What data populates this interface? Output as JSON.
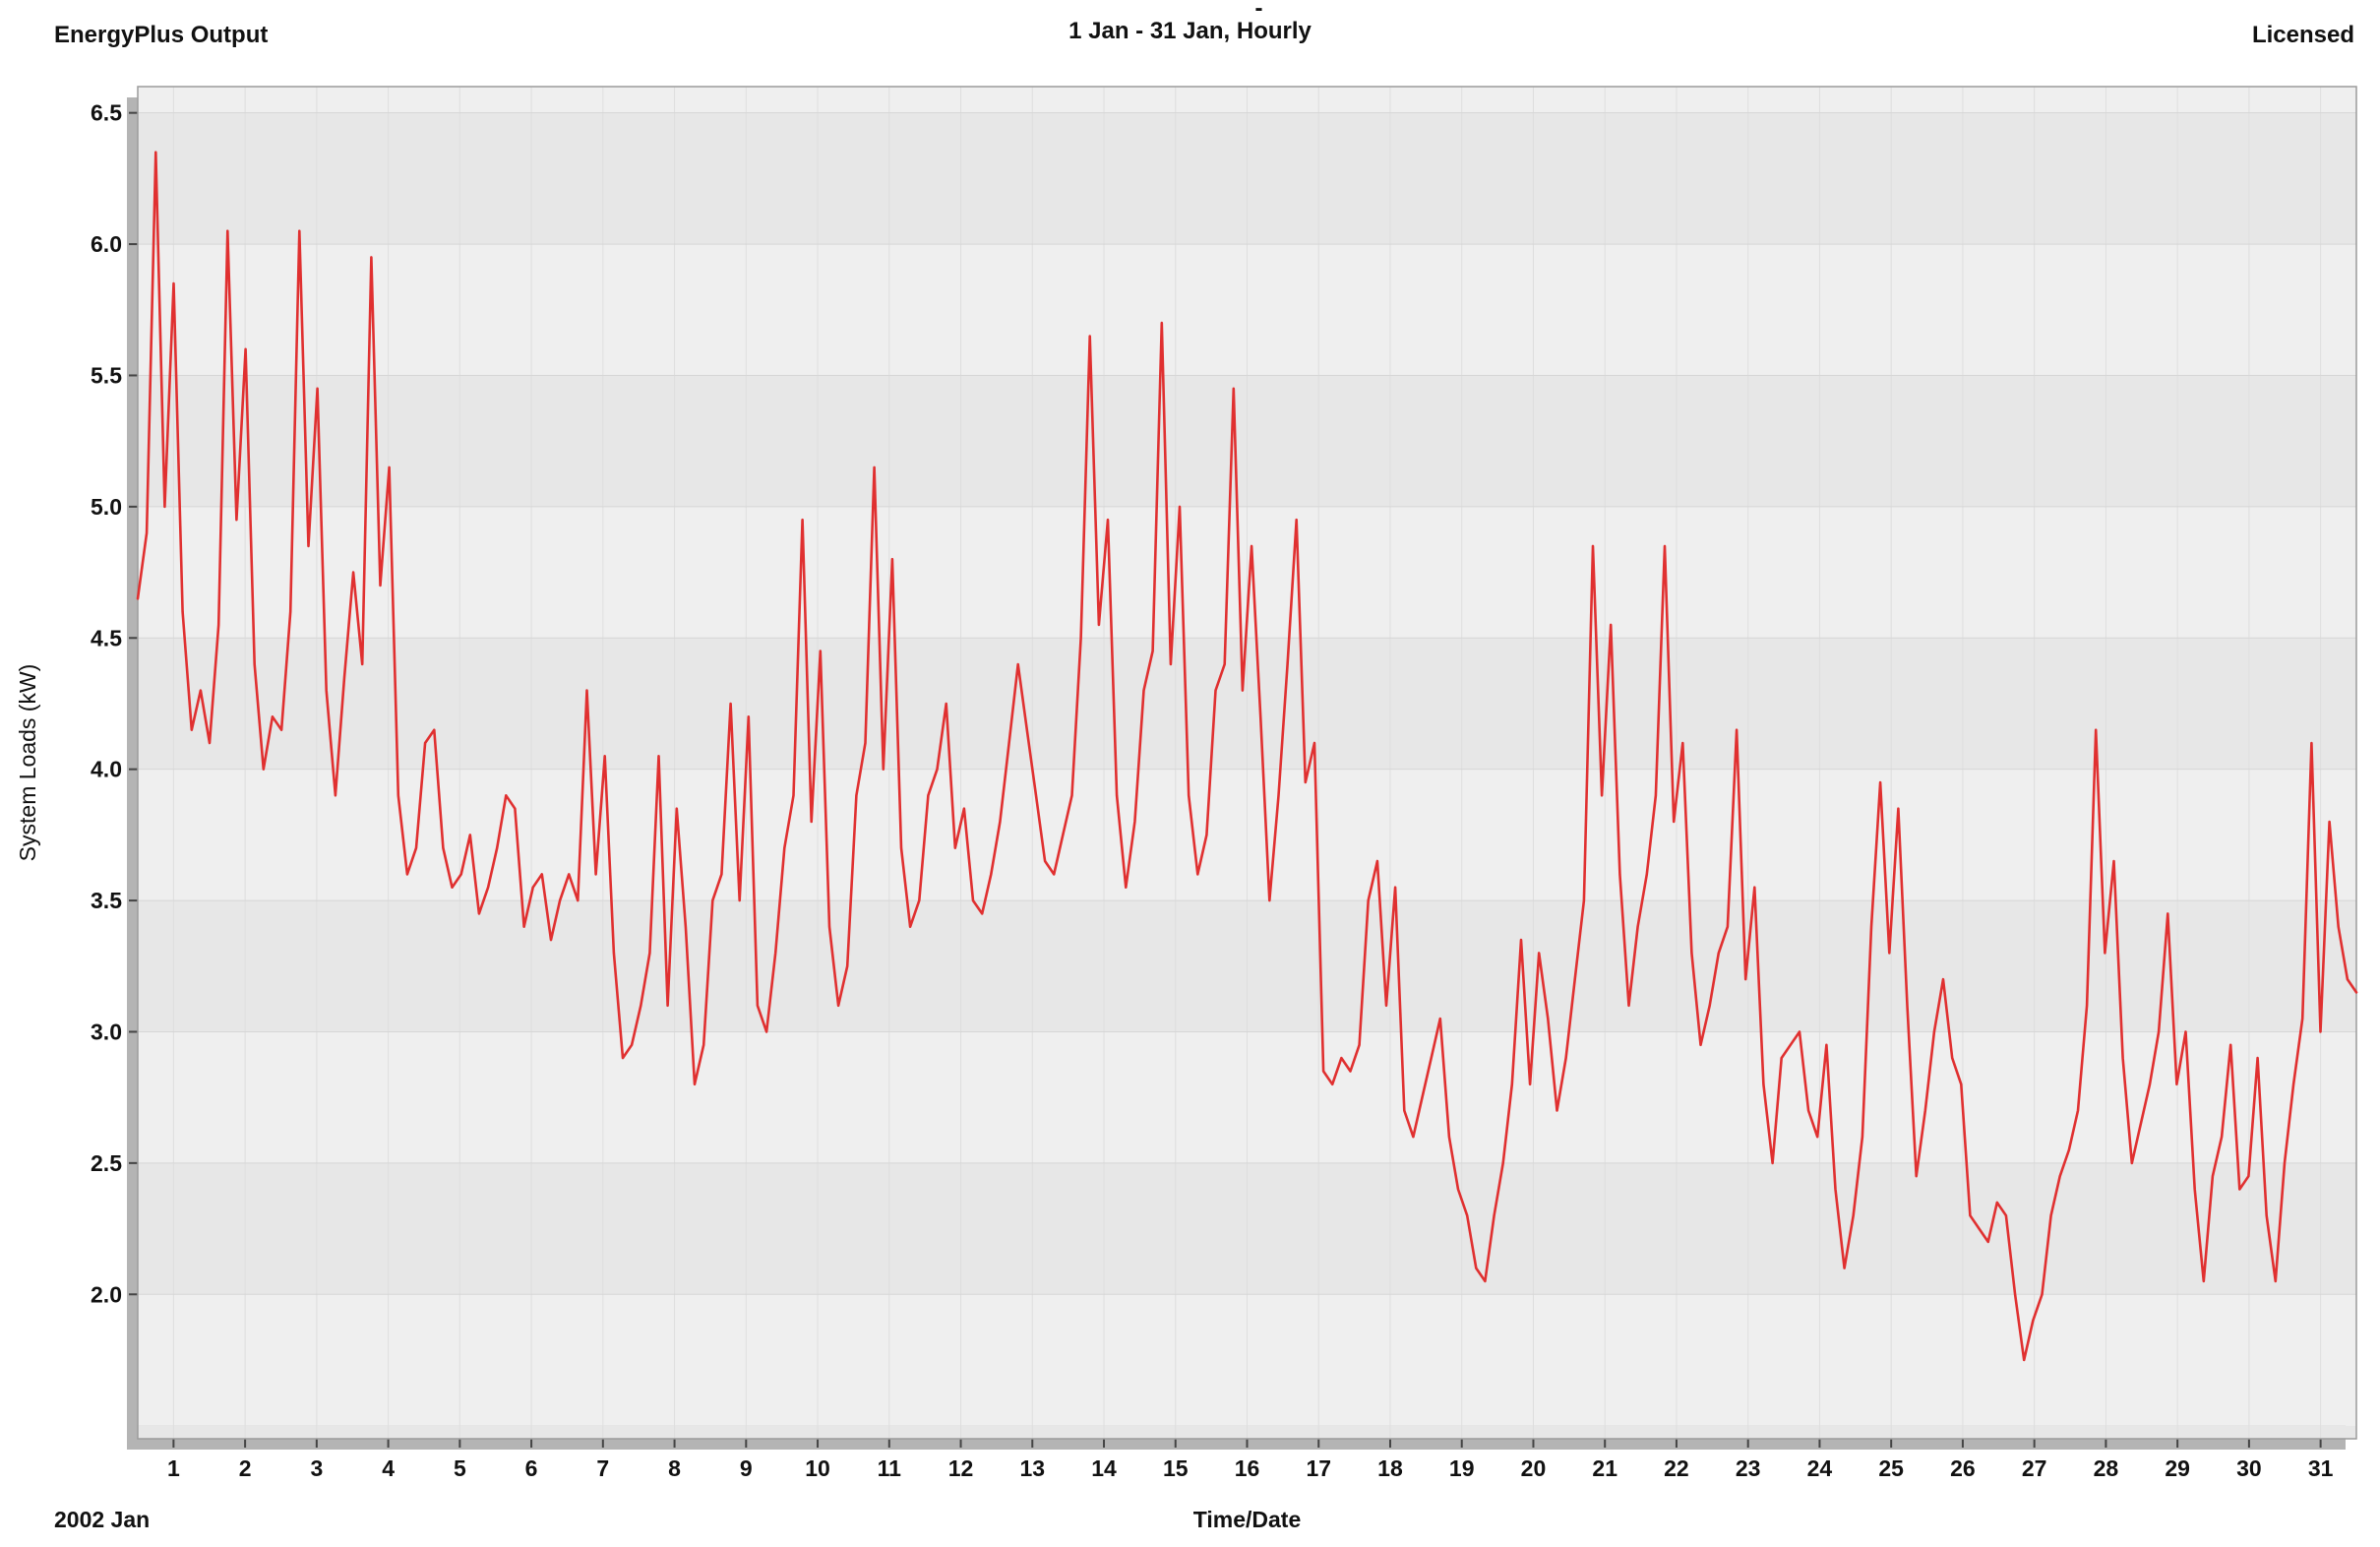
{
  "header": {
    "app_label": "EnergyPlus Output",
    "title": "1 Jan - 31 Jan, Hourly",
    "license_label": "Licensed",
    "mark": "-"
  },
  "chart_data": {
    "type": "line",
    "title": "1 Jan - 31 Jan, Hourly",
    "xlabel": "Time/Date",
    "ylabel": "System Loads (kW)",
    "x_axis_note": "2002 Jan",
    "xlim": [
      0,
      31
    ],
    "ylim": [
      1.45,
      6.6
    ],
    "x_ticks": [
      1,
      2,
      3,
      4,
      5,
      6,
      7,
      8,
      9,
      10,
      11,
      12,
      13,
      14,
      15,
      16,
      17,
      18,
      19,
      20,
      21,
      22,
      23,
      24,
      25,
      26,
      27,
      28,
      29,
      30,
      31
    ],
    "x_tick_offset": -0.5,
    "y_ticks": [
      2.0,
      2.5,
      3.0,
      3.5,
      4.0,
      4.5,
      5.0,
      5.5,
      6.0,
      6.5
    ],
    "grid": true,
    "legend_position": "none",
    "line_color": "#e03030",
    "band_color_dark": "#e7e7e7",
    "band_color_light": "#efefef",
    "points_per_day": 8,
    "series": [
      {
        "name": "System Loads (kW)",
        "values": [
          4.65,
          4.9,
          6.35,
          5.0,
          5.85,
          4.6,
          4.15,
          4.3,
          4.1,
          4.55,
          6.05,
          4.95,
          5.6,
          4.4,
          4.0,
          4.2,
          4.15,
          4.6,
          6.05,
          4.85,
          5.45,
          4.3,
          3.9,
          4.35,
          4.75,
          4.4,
          5.95,
          4.7,
          5.15,
          3.9,
          3.6,
          3.7,
          4.1,
          4.15,
          3.7,
          3.55,
          3.6,
          3.75,
          3.45,
          3.55,
          3.7,
          3.9,
          3.85,
          3.4,
          3.55,
          3.6,
          3.35,
          3.5,
          3.6,
          3.5,
          4.3,
          3.6,
          4.05,
          3.3,
          2.9,
          2.95,
          3.1,
          3.3,
          4.05,
          3.1,
          3.85,
          3.4,
          2.8,
          2.95,
          3.5,
          3.6,
          4.25,
          3.5,
          4.2,
          3.1,
          3.0,
          3.3,
          3.7,
          3.9,
          4.95,
          3.8,
          4.45,
          3.4,
          3.1,
          3.25,
          3.9,
          4.1,
          5.15,
          4.0,
          4.8,
          3.7,
          3.4,
          3.5,
          3.9,
          4.0,
          4.25,
          3.7,
          3.85,
          3.5,
          3.45,
          3.6,
          3.8,
          4.1,
          4.4,
          4.15,
          3.9,
          3.65,
          3.6,
          3.75,
          3.9,
          4.5,
          5.65,
          4.55,
          4.95,
          3.9,
          3.55,
          3.8,
          4.3,
          4.45,
          5.7,
          4.4,
          5.0,
          3.9,
          3.6,
          3.75,
          4.3,
          4.4,
          5.45,
          4.3,
          4.85,
          4.2,
          3.5,
          3.9,
          4.4,
          4.95,
          3.95,
          4.1,
          2.85,
          2.8,
          2.9,
          2.85,
          2.95,
          3.5,
          3.65,
          3.1,
          3.55,
          2.7,
          2.6,
          2.75,
          2.9,
          3.05,
          2.6,
          2.4,
          2.3,
          2.1,
          2.05,
          2.3,
          2.5,
          2.8,
          3.35,
          2.8,
          3.3,
          3.05,
          2.7,
          2.9,
          3.2,
          3.5,
          4.85,
          3.9,
          4.55,
          3.6,
          3.1,
          3.4,
          3.6,
          3.9,
          4.85,
          3.8,
          4.1,
          3.3,
          2.95,
          3.1,
          3.3,
          3.4,
          4.15,
          3.2,
          3.55,
          2.8,
          2.5,
          2.9,
          2.95,
          3.0,
          2.7,
          2.6,
          2.95,
          2.4,
          2.1,
          2.3,
          2.6,
          3.4,
          3.95,
          3.3,
          3.85,
          3.1,
          2.45,
          2.7,
          3.0,
          3.2,
          2.9,
          2.8,
          2.3,
          2.25,
          2.2,
          2.35,
          2.3,
          2.0,
          1.75,
          1.9,
          2.0,
          2.3,
          2.45,
          2.55,
          2.7,
          3.1,
          4.15,
          3.3,
          3.65,
          2.9,
          2.5,
          2.65,
          2.8,
          3.0,
          3.45,
          2.8,
          3.0,
          2.4,
          2.05,
          2.45,
          2.6,
          2.95,
          2.4,
          2.45,
          2.9,
          2.3,
          2.05,
          2.5,
          2.8,
          3.05,
          4.1,
          3.0,
          3.8,
          3.4,
          3.2,
          3.15
        ]
      }
    ]
  }
}
